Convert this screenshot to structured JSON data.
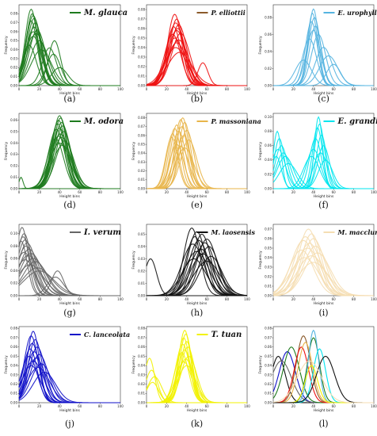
{
  "figure": {
    "layout": "3 columns x 4 rows",
    "xlabel": "Height bins",
    "ylabel": "Frequency"
  },
  "chart_data": [
    {
      "panel": "(a)",
      "type": "line",
      "legend": "M. glauca",
      "legend_color": "#1e7b1e",
      "series_color": "#1e7b1e",
      "xlim": [
        0,
        100
      ],
      "xticks": [
        "0",
        "20",
        "40",
        "60",
        "80",
        "100"
      ],
      "ylim": [
        0,
        0.09
      ],
      "yticks": [
        "0.00",
        "0.01",
        "0.02",
        "0.03",
        "0.04",
        "0.05",
        "0.06",
        "0.07",
        "0.08"
      ],
      "curves": [
        [
          12,
          0.085,
          6
        ],
        [
          13,
          0.08,
          6
        ],
        [
          14,
          0.078,
          7
        ],
        [
          15,
          0.075,
          7
        ],
        [
          12,
          0.072,
          6
        ],
        [
          16,
          0.07,
          7
        ],
        [
          15,
          0.065,
          8
        ],
        [
          18,
          0.062,
          8
        ],
        [
          14,
          0.06,
          8
        ],
        [
          17,
          0.058,
          9
        ],
        [
          14,
          0.055,
          8
        ],
        [
          20,
          0.05,
          9
        ],
        [
          35,
          0.05,
          6
        ],
        [
          30,
          0.042,
          7
        ],
        [
          10,
          0.045,
          7
        ],
        [
          22,
          0.04,
          10
        ],
        [
          34,
          0.035,
          7
        ],
        [
          40,
          0.02,
          8
        ]
      ]
    },
    {
      "panel": "(b)",
      "type": "line",
      "legend": "P. elliottii",
      "legend_color": "#8b5a2b",
      "series_color": "#ee1111",
      "xlim": [
        0,
        100
      ],
      "xticks": [
        "0",
        "20",
        "40",
        "60",
        "80",
        "100"
      ],
      "ylim": [
        0,
        0.085
      ],
      "yticks": [
        "0.00",
        "0.01",
        "0.02",
        "0.03",
        "0.04",
        "0.05",
        "0.06",
        "0.07",
        "0.08"
      ],
      "curves": [
        [
          28,
          0.075,
          7
        ],
        [
          30,
          0.07,
          7
        ],
        [
          29,
          0.066,
          8
        ],
        [
          32,
          0.064,
          8
        ],
        [
          27,
          0.062,
          7
        ],
        [
          31,
          0.06,
          8
        ],
        [
          30,
          0.058,
          9
        ],
        [
          34,
          0.055,
          9
        ],
        [
          26,
          0.054,
          8
        ],
        [
          28,
          0.05,
          9
        ],
        [
          32,
          0.048,
          10
        ],
        [
          30,
          0.045,
          10
        ],
        [
          29,
          0.04,
          11
        ],
        [
          33,
          0.035,
          12
        ],
        [
          56,
          0.024,
          5
        ]
      ]
    },
    {
      "panel": "(c)",
      "type": "line",
      "legend": "E. urophylla",
      "legend_color": "#55b4e0",
      "series_color": "#55b4e0",
      "xlim": [
        0,
        100
      ],
      "xticks": [
        "0",
        "20",
        "40",
        "60",
        "80",
        "100"
      ],
      "ylim": [
        0,
        0.095
      ],
      "yticks": [
        "0.00",
        "0.02",
        "0.04",
        "0.06",
        "0.08"
      ],
      "curves": [
        [
          40,
          0.09,
          5
        ],
        [
          39,
          0.085,
          5
        ],
        [
          41,
          0.08,
          6
        ],
        [
          38,
          0.075,
          6
        ],
        [
          42,
          0.07,
          6
        ],
        [
          40,
          0.065,
          7
        ],
        [
          45,
          0.06,
          7
        ],
        [
          36,
          0.055,
          7
        ],
        [
          50,
          0.045,
          8
        ],
        [
          55,
          0.035,
          9
        ],
        [
          30,
          0.03,
          8
        ],
        [
          60,
          0.025,
          7
        ]
      ]
    },
    {
      "panel": "(d)",
      "type": "line",
      "legend": "M. odora",
      "legend_color": "#1e7b1e",
      "series_color": "#1e7b1e",
      "xlim": [
        0,
        100
      ],
      "xticks": [
        "0",
        "20",
        "40",
        "60",
        "80",
        "100"
      ],
      "ylim": [
        0,
        0.066
      ],
      "yticks": [
        "0.00",
        "0.01",
        "0.02",
        "0.03",
        "0.04",
        "0.05",
        "0.06"
      ],
      "curves": [
        [
          40,
          0.064,
          7
        ],
        [
          41,
          0.062,
          7
        ],
        [
          39,
          0.06,
          7
        ],
        [
          42,
          0.058,
          8
        ],
        [
          38,
          0.057,
          7
        ],
        [
          43,
          0.055,
          8
        ],
        [
          40,
          0.053,
          8
        ],
        [
          37,
          0.052,
          8
        ],
        [
          44,
          0.05,
          8
        ],
        [
          41,
          0.048,
          9
        ],
        [
          39,
          0.046,
          9
        ],
        [
          42,
          0.045,
          9
        ],
        [
          36,
          0.044,
          8
        ],
        [
          45,
          0.042,
          9
        ],
        [
          40,
          0.04,
          10
        ],
        [
          43,
          0.038,
          10
        ],
        [
          2,
          0.01,
          2
        ]
      ]
    },
    {
      "panel": "(e)",
      "type": "line",
      "legend": "P. massoniana",
      "legend_color": "#e8b54a",
      "series_color": "#e8b54a",
      "xlim": [
        0,
        100
      ],
      "xticks": [
        "0",
        "20",
        "40",
        "60",
        "80",
        "100"
      ],
      "ylim": [
        0,
        0.085
      ],
      "yticks": [
        "0.00",
        "0.01",
        "0.02",
        "0.03",
        "0.04",
        "0.05",
        "0.06",
        "0.07",
        "0.08"
      ],
      "curves": [
        [
          36,
          0.08,
          6
        ],
        [
          34,
          0.078,
          6
        ],
        [
          38,
          0.075,
          6
        ],
        [
          30,
          0.072,
          6
        ],
        [
          35,
          0.07,
          7
        ],
        [
          28,
          0.068,
          6
        ],
        [
          40,
          0.066,
          7
        ],
        [
          32,
          0.065,
          7
        ],
        [
          26,
          0.062,
          6
        ],
        [
          37,
          0.06,
          7
        ],
        [
          25,
          0.058,
          6
        ],
        [
          42,
          0.055,
          8
        ],
        [
          30,
          0.05,
          7
        ],
        [
          34,
          0.048,
          8
        ],
        [
          38,
          0.046,
          9
        ]
      ]
    },
    {
      "panel": "(f)",
      "type": "line",
      "legend": "E. grandis",
      "legend_color": "#00e5ee",
      "series_color": "#00e5ee",
      "xlim": [
        0,
        100
      ],
      "xticks": [
        "0",
        "20",
        "40",
        "60",
        "80",
        "100"
      ],
      "ylim": [
        0,
        0.105
      ],
      "yticks": [
        "0.00",
        "0.02",
        "0.04",
        "0.06",
        "0.08",
        "0.10"
      ],
      "curves": [
        [
          45,
          0.1,
          4
        ],
        [
          46,
          0.09,
          5
        ],
        [
          44,
          0.085,
          5
        ],
        [
          4,
          0.08,
          4
        ],
        [
          48,
          0.075,
          5
        ],
        [
          6,
          0.07,
          5
        ],
        [
          42,
          0.07,
          6
        ],
        [
          8,
          0.06,
          6
        ],
        [
          50,
          0.06,
          6
        ],
        [
          5,
          0.055,
          7
        ],
        [
          40,
          0.055,
          7
        ],
        [
          10,
          0.05,
          7
        ],
        [
          47,
          0.05,
          7
        ],
        [
          12,
          0.045,
          8
        ],
        [
          38,
          0.045,
          8
        ],
        [
          3,
          0.045,
          5
        ],
        [
          52,
          0.04,
          7
        ],
        [
          15,
          0.035,
          9
        ]
      ]
    },
    {
      "panel": "(g)",
      "type": "line",
      "legend": "I. verum",
      "legend_color": "#666666",
      "series_color": "#666666",
      "xlim": [
        0,
        100
      ],
      "xticks": [
        "0",
        "20",
        "40",
        "60",
        "80",
        "100"
      ],
      "ylim": [
        0,
        0.115
      ],
      "yticks": [
        "0.00",
        "0.02",
        "0.04",
        "0.06",
        "0.08",
        "0.10"
      ],
      "curves": [
        [
          3,
          0.11,
          6
        ],
        [
          5,
          0.1,
          7
        ],
        [
          4,
          0.095,
          7
        ],
        [
          6,
          0.09,
          8
        ],
        [
          2,
          0.088,
          6
        ],
        [
          8,
          0.085,
          9
        ],
        [
          7,
          0.08,
          9
        ],
        [
          10,
          0.075,
          10
        ],
        [
          5,
          0.07,
          9
        ],
        [
          12,
          0.068,
          11
        ],
        [
          9,
          0.065,
          11
        ],
        [
          14,
          0.06,
          12
        ],
        [
          6,
          0.058,
          10
        ],
        [
          16,
          0.055,
          12
        ],
        [
          11,
          0.05,
          13
        ],
        [
          18,
          0.045,
          14
        ],
        [
          38,
          0.04,
          6
        ],
        [
          20,
          0.04,
          15
        ],
        [
          36,
          0.03,
          8
        ]
      ]
    },
    {
      "panel": "(h)",
      "type": "line",
      "legend": "M. laosensis",
      "legend_color": "#111111",
      "series_color": "#111111",
      "xlim": [
        0,
        100
      ],
      "xticks": [
        "0",
        "20",
        "40",
        "60",
        "80",
        "100"
      ],
      "ylim": [
        0,
        0.058
      ],
      "yticks": [
        "0.00",
        "0.01",
        "0.02",
        "0.03",
        "0.04",
        "0.05"
      ],
      "curves": [
        [
          45,
          0.055,
          8
        ],
        [
          50,
          0.052,
          9
        ],
        [
          55,
          0.05,
          9
        ],
        [
          48,
          0.048,
          9
        ],
        [
          60,
          0.046,
          10
        ],
        [
          52,
          0.045,
          10
        ],
        [
          58,
          0.043,
          10
        ],
        [
          46,
          0.042,
          11
        ],
        [
          62,
          0.04,
          10
        ],
        [
          54,
          0.038,
          11
        ],
        [
          50,
          0.036,
          12
        ],
        [
          56,
          0.034,
          12
        ],
        [
          64,
          0.032,
          11
        ],
        [
          47,
          0.03,
          12
        ],
        [
          4,
          0.03,
          6
        ],
        [
          60,
          0.028,
          13
        ]
      ]
    },
    {
      "panel": "(i)",
      "type": "line",
      "legend": "M. macclurei",
      "legend_color": "#f5deb3",
      "series_color": "#f5deb3",
      "xlim": [
        0,
        100
      ],
      "xticks": [
        "0",
        "20",
        "40",
        "60",
        "80",
        "100"
      ],
      "ylim": [
        0,
        0.075
      ],
      "yticks": [
        "0.00",
        "0.01",
        "0.02",
        "0.03",
        "0.04",
        "0.05",
        "0.06",
        "0.07"
      ],
      "curves": [
        [
          35,
          0.07,
          10
        ],
        [
          38,
          0.065,
          10
        ],
        [
          32,
          0.062,
          11
        ],
        [
          40,
          0.06,
          11
        ],
        [
          30,
          0.058,
          12
        ],
        [
          36,
          0.055,
          12
        ],
        [
          42,
          0.052,
          12
        ],
        [
          34,
          0.05,
          13
        ],
        [
          28,
          0.048,
          12
        ],
        [
          44,
          0.045,
          13
        ],
        [
          38,
          0.042,
          14
        ],
        [
          31,
          0.04,
          14
        ],
        [
          40,
          0.035,
          15
        ]
      ]
    },
    {
      "panel": "(j)",
      "type": "line",
      "legend": "C. lanceolata",
      "legend_color": "#1010c8",
      "series_color": "#1010c8",
      "xlim": [
        0,
        100
      ],
      "xticks": [
        "0",
        "20",
        "40",
        "60",
        "80",
        "100"
      ],
      "ylim": [
        0,
        0.082
      ],
      "yticks": [
        "0.00",
        "0.01",
        "0.02",
        "0.03",
        "0.04",
        "0.05",
        "0.06",
        "0.07",
        "0.08"
      ],
      "curves": [
        [
          14,
          0.077,
          6
        ],
        [
          12,
          0.072,
          7
        ],
        [
          16,
          0.068,
          7
        ],
        [
          13,
          0.064,
          7
        ],
        [
          18,
          0.06,
          8
        ],
        [
          11,
          0.058,
          7
        ],
        [
          15,
          0.055,
          8
        ],
        [
          20,
          0.052,
          9
        ],
        [
          10,
          0.05,
          8
        ],
        [
          17,
          0.048,
          9
        ],
        [
          14,
          0.045,
          10
        ],
        [
          22,
          0.042,
          10
        ],
        [
          12,
          0.04,
          9
        ],
        [
          19,
          0.038,
          11
        ],
        [
          25,
          0.033,
          11
        ]
      ]
    },
    {
      "panel": "(k)",
      "type": "line",
      "legend": "T. tuan",
      "legend_color": "#f2f200",
      "series_color": "#f2f200",
      "xlim": [
        0,
        100
      ],
      "xticks": [
        "0",
        "20",
        "40",
        "60",
        "80",
        "100"
      ],
      "ylim": [
        0,
        0.082
      ],
      "yticks": [
        "0.00",
        "0.01",
        "0.02",
        "0.03",
        "0.04",
        "0.05",
        "0.06",
        "0.07",
        "0.08"
      ],
      "curves": [
        [
          38,
          0.078,
          6
        ],
        [
          39,
          0.074,
          6
        ],
        [
          37,
          0.07,
          6
        ],
        [
          40,
          0.066,
          6
        ],
        [
          36,
          0.063,
          7
        ],
        [
          41,
          0.06,
          7
        ],
        [
          38,
          0.057,
          7
        ],
        [
          35,
          0.054,
          7
        ],
        [
          42,
          0.05,
          8
        ],
        [
          39,
          0.047,
          8
        ],
        [
          37,
          0.044,
          8
        ],
        [
          40,
          0.04,
          9
        ],
        [
          3,
          0.048,
          5
        ],
        [
          5,
          0.035,
          6
        ],
        [
          8,
          0.028,
          7
        ],
        [
          6,
          0.022,
          6
        ]
      ]
    },
    {
      "panel": "(l)",
      "type": "line",
      "legend": "",
      "xlim": [
        0,
        100
      ],
      "xticks": [
        "0",
        "20",
        "40",
        "60",
        "80",
        "100"
      ],
      "ylim": [
        0,
        0.082
      ],
      "yticks": [
        "0.00",
        "0.01",
        "0.02",
        "0.03",
        "0.04",
        "0.05",
        "0.06",
        "0.07",
        "0.08"
      ],
      "colored_curves": [
        {
          "color": "#111111",
          "mu": 5,
          "peak": 0.05,
          "sigma": 7
        },
        {
          "color": "#1010c8",
          "mu": 14,
          "peak": 0.055,
          "sigma": 8
        },
        {
          "color": "#666666",
          "mu": 8,
          "peak": 0.045,
          "sigma": 10
        },
        {
          "color": "#1e7b1e",
          "mu": 18,
          "peak": 0.06,
          "sigma": 8
        },
        {
          "color": "#8b5a2b",
          "mu": 30,
          "peak": 0.072,
          "sigma": 7
        },
        {
          "color": "#ee1111",
          "mu": 28,
          "peak": 0.06,
          "sigma": 7
        },
        {
          "color": "#e8b54a",
          "mu": 32,
          "peak": 0.065,
          "sigma": 7
        },
        {
          "color": "#1e7b1e",
          "mu": 40,
          "peak": 0.07,
          "sigma": 6
        },
        {
          "color": "#55b4e0",
          "mu": 40,
          "peak": 0.078,
          "sigma": 5
        },
        {
          "color": "#00e5ee",
          "mu": 46,
          "peak": 0.058,
          "sigma": 6
        },
        {
          "color": "#f2f200",
          "mu": 38,
          "peak": 0.04,
          "sigma": 6
        },
        {
          "color": "#111111",
          "mu": 52,
          "peak": 0.05,
          "sigma": 9
        },
        {
          "color": "#f5deb3",
          "mu": 36,
          "peak": 0.045,
          "sigma": 12
        }
      ]
    }
  ]
}
